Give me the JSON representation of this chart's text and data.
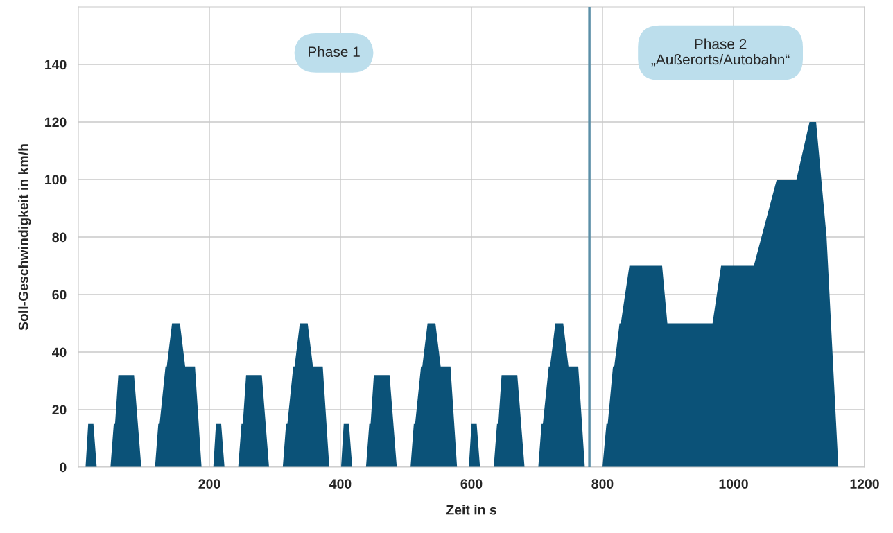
{
  "chart_data": {
    "type": "area",
    "xlabel": "Zeit in s",
    "ylabel": "Soll-Geschwindigkeit in km/h",
    "xlim": [
      0,
      1200
    ],
    "xticks": [
      200,
      400,
      600,
      800,
      1000,
      1200
    ],
    "ylim": [
      0,
      160
    ],
    "yticks": [
      0,
      20,
      40,
      60,
      80,
      100,
      120,
      140
    ],
    "grid": true,
    "series": [
      {
        "color": "#0b5278",
        "x": [
          0,
          11,
          15,
          23,
          28,
          49,
          54,
          56,
          61,
          85,
          96,
          117,
          122,
          124,
          133,
          135,
          143,
          155,
          163,
          178,
          188,
          195,
          206,
          210,
          218,
          223,
          244,
          249,
          251,
          256,
          280,
          291,
          312,
          317,
          319,
          328,
          330,
          338,
          350,
          358,
          373,
          383,
          390,
          401,
          405,
          413,
          418,
          439,
          444,
          446,
          451,
          475,
          486,
          507,
          512,
          514,
          523,
          525,
          533,
          545,
          553,
          568,
          578,
          585,
          596,
          600,
          608,
          613,
          634,
          639,
          641,
          646,
          670,
          681,
          702,
          707,
          709,
          718,
          720,
          728,
          740,
          748,
          763,
          773,
          800,
          806,
          808,
          816,
          818,
          826,
          828,
          841,
          891,
          899,
          968,
          981,
          1031,
          1066,
          1096,
          1116,
          1126,
          1142,
          1160,
          1180
        ],
        "values": [
          0,
          0,
          15,
          15,
          0,
          0,
          15,
          15,
          32,
          32,
          0,
          0,
          15,
          15,
          35,
          35,
          50,
          50,
          35,
          35,
          0,
          0,
          0,
          15,
          15,
          0,
          0,
          15,
          15,
          32,
          32,
          0,
          0,
          15,
          15,
          35,
          35,
          50,
          50,
          35,
          35,
          0,
          0,
          0,
          15,
          15,
          0,
          0,
          15,
          15,
          32,
          32,
          0,
          0,
          15,
          15,
          35,
          35,
          50,
          50,
          35,
          35,
          0,
          0,
          0,
          15,
          15,
          0,
          0,
          15,
          15,
          32,
          32,
          0,
          0,
          15,
          15,
          35,
          35,
          50,
          50,
          35,
          35,
          0,
          0,
          15,
          15,
          35,
          35,
          50,
          50,
          70,
          70,
          50,
          50,
          70,
          70,
          100,
          100,
          120,
          120,
          80,
          0,
          0
        ]
      }
    ],
    "ref_lines": [
      {
        "axis": "x",
        "value": 780,
        "color": "#5b8fa8"
      }
    ],
    "annotations": [
      "Phase 1",
      "Phase 2\n„Außerorts/Autobahn“"
    ]
  }
}
